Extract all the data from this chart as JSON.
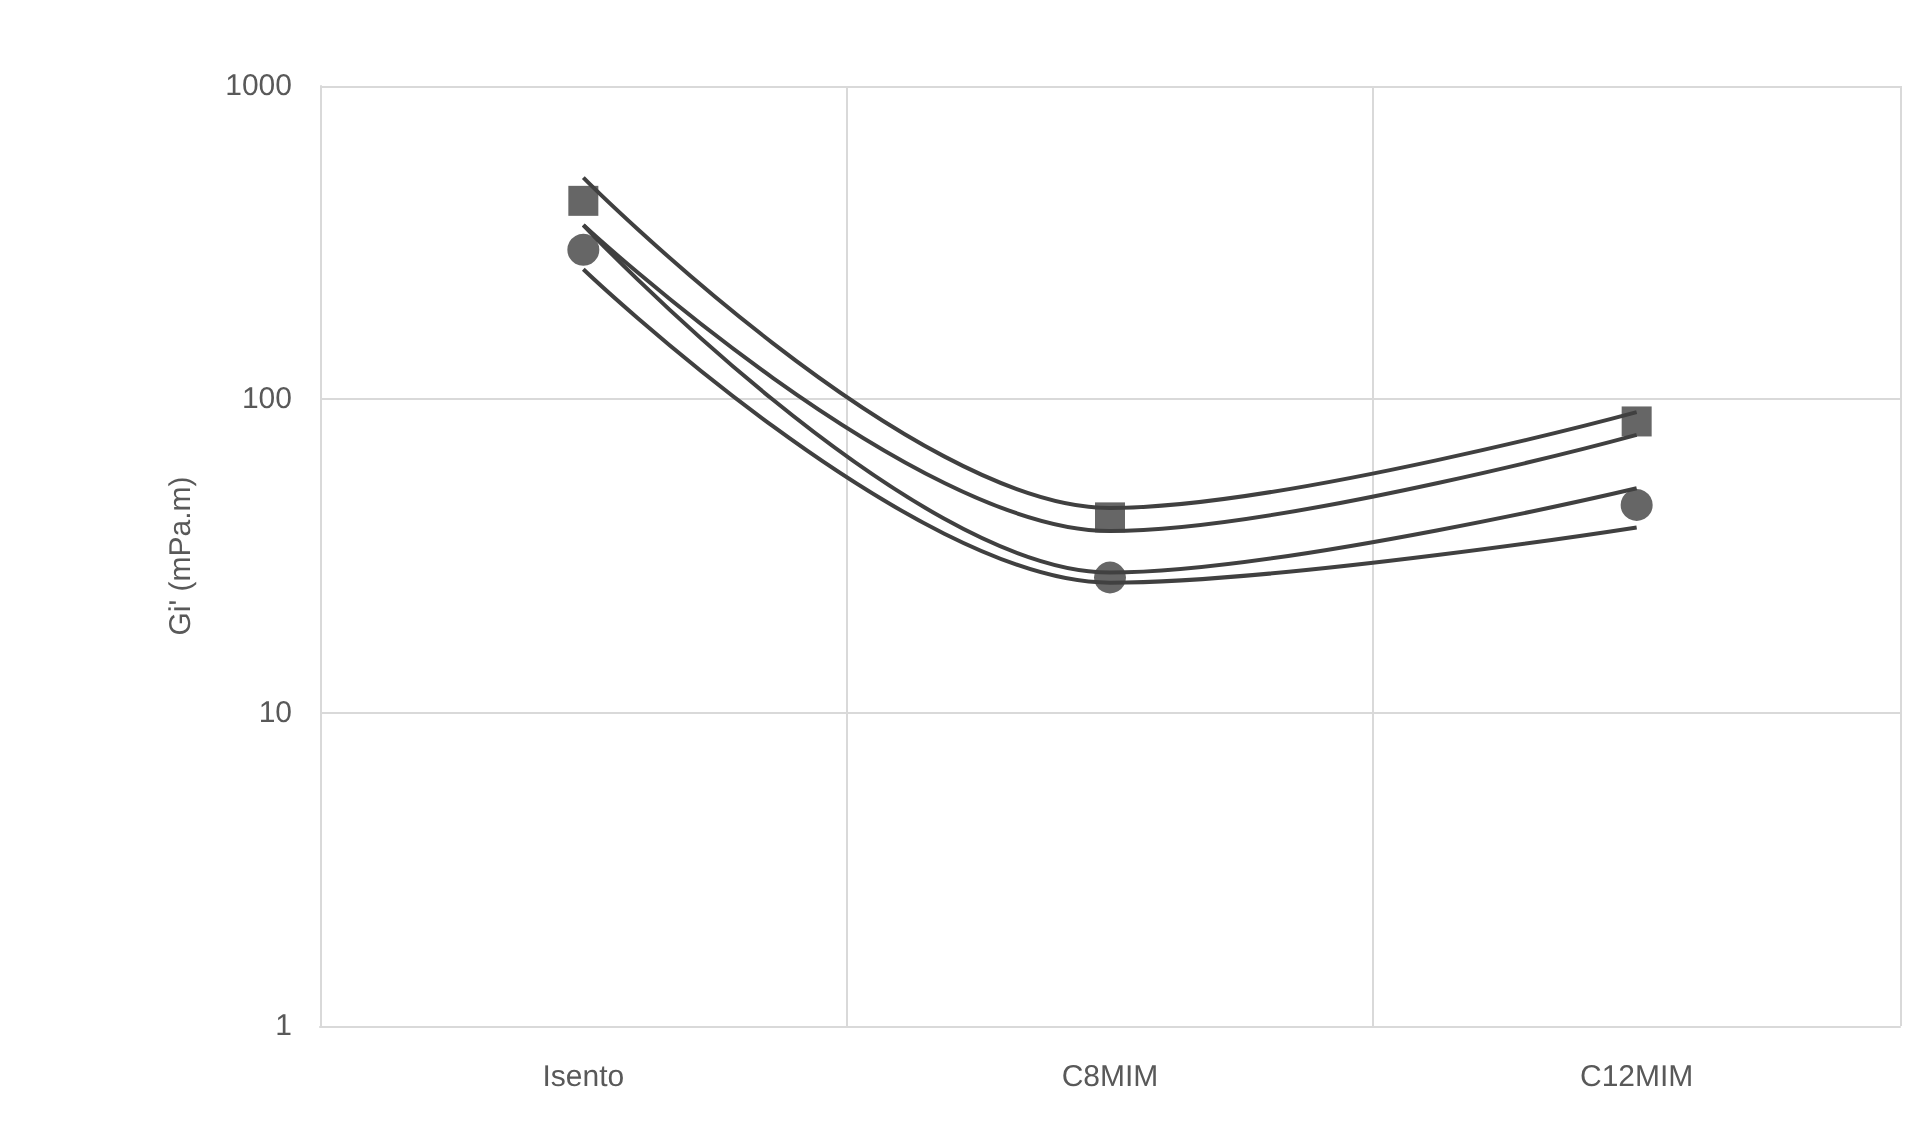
{
  "chart_data": {
    "type": "scatter",
    "ylabel": "Gi' (mPa.m)",
    "categories": [
      "Isento",
      "C8MIM",
      "C12MIM"
    ],
    "log": "y",
    "ylim": [
      1,
      1000
    ],
    "yticks": [
      1,
      10,
      100,
      1000
    ],
    "grid": true,
    "series": [
      {
        "type": "line",
        "color": "#404040",
        "marker": "none",
        "values": [
          510,
          45,
          91
        ]
      },
      {
        "type": "line",
        "color": "#404040",
        "marker": "none",
        "values": [
          360,
          38,
          77
        ]
      },
      {
        "type": "line",
        "color": "#404040",
        "marker": "none",
        "values": [
          360,
          28,
          52
        ]
      },
      {
        "type": "line",
        "color": "#404040",
        "marker": "none",
        "values": [
          260,
          26,
          39
        ]
      },
      {
        "color": "#404040",
        "marker": "square",
        "values": [
          430,
          42,
          85
        ]
      },
      {
        "color": "#404040",
        "marker": "circle",
        "values": [
          300,
          27,
          46
        ]
      }
    ]
  }
}
